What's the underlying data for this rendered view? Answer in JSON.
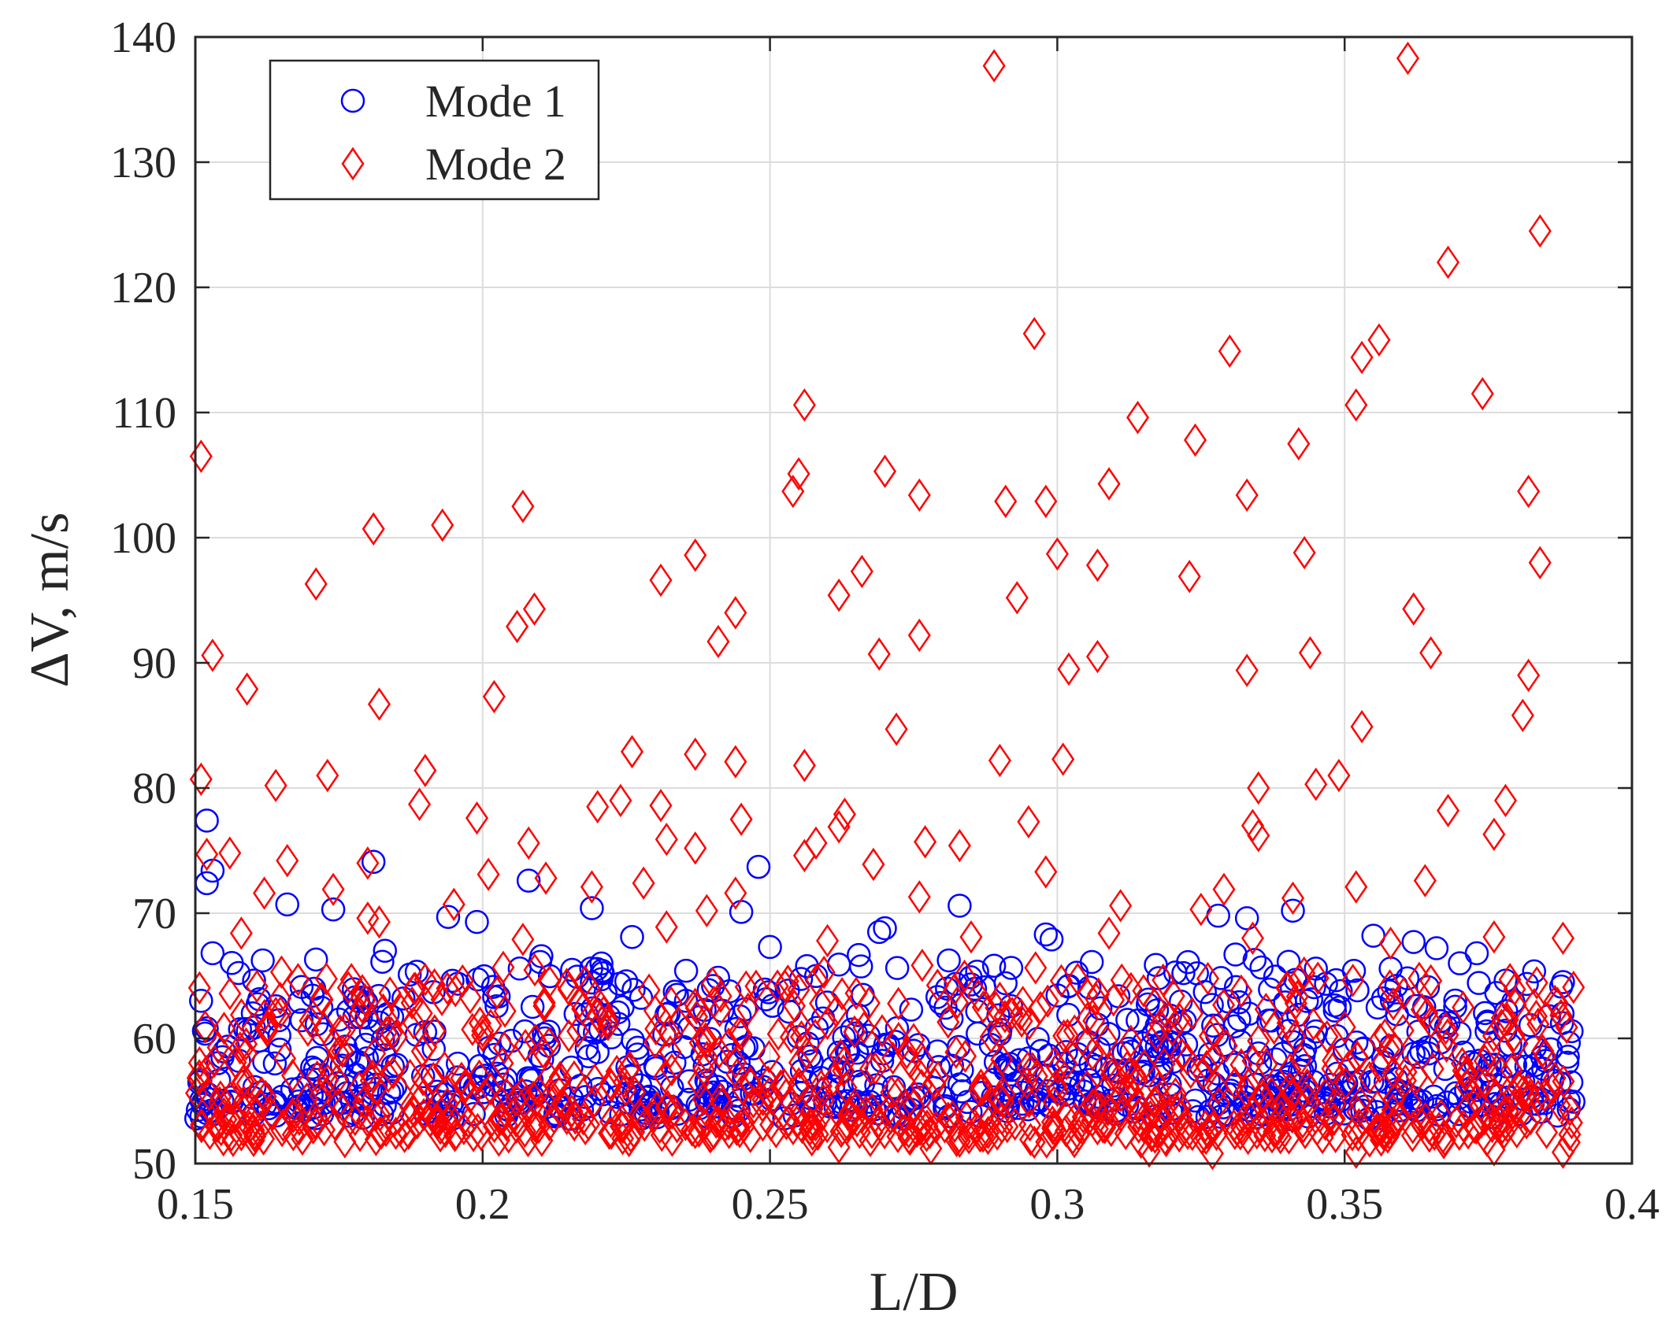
{
  "chart_data": {
    "type": "scatter",
    "title": "",
    "xlabel": "L/D",
    "ylabel": "ΔV, m/s",
    "xlim": [
      0.15,
      0.4
    ],
    "ylim": [
      50,
      140
    ],
    "xticks": [
      0.15,
      0.2,
      0.25,
      0.3,
      0.35,
      0.4
    ],
    "xtick_labels": [
      "0.15",
      "0.2",
      "0.25",
      "0.3",
      "0.35",
      "0.4"
    ],
    "yticks": [
      50,
      60,
      70,
      80,
      90,
      100,
      110,
      120,
      130,
      140
    ],
    "ytick_labels": [
      "50",
      "60",
      "70",
      "80",
      "90",
      "100",
      "110",
      "120",
      "130",
      "140"
    ],
    "grid": true,
    "legend_position": "top-left",
    "series": [
      {
        "name": "Mode 1",
        "marker": "circle",
        "color": "#0000ff",
        "n_points": 900,
        "x_range": [
          0.15,
          0.39
        ],
        "y_range": [
          52.5,
          77.4
        ],
        "points": [
          [
            0.152,
            77.4
          ],
          [
            0.153,
            73.4
          ],
          [
            0.152,
            72.4
          ],
          [
            0.153,
            66.8
          ],
          [
            0.151,
            63.0
          ],
          [
            0.181,
            74.1
          ],
          [
            0.174,
            70.3
          ],
          [
            0.166,
            70.7
          ],
          [
            0.183,
            67.0
          ],
          [
            0.171,
            66.3
          ],
          [
            0.208,
            72.6
          ],
          [
            0.199,
            69.3
          ],
          [
            0.194,
            69.7
          ],
          [
            0.21,
            66.1
          ],
          [
            0.202,
            63.3
          ],
          [
            0.248,
            73.7
          ],
          [
            0.245,
            70.1
          ],
          [
            0.219,
            70.4
          ],
          [
            0.226,
            68.1
          ],
          [
            0.25,
            67.3
          ],
          [
            0.283,
            70.6
          ],
          [
            0.269,
            68.5
          ],
          [
            0.27,
            68.8
          ],
          [
            0.262,
            65.9
          ],
          [
            0.289,
            65.8
          ],
          [
            0.298,
            68.3
          ],
          [
            0.299,
            67.9
          ],
          [
            0.306,
            66.1
          ],
          [
            0.291,
            64.4
          ],
          [
            0.302,
            64.2
          ],
          [
            0.328,
            69.8
          ],
          [
            0.333,
            69.6
          ],
          [
            0.341,
            70.2
          ],
          [
            0.331,
            66.7
          ],
          [
            0.337,
            63.9
          ],
          [
            0.355,
            68.2
          ],
          [
            0.362,
            67.7
          ],
          [
            0.366,
            67.2
          ],
          [
            0.373,
            66.8
          ],
          [
            0.388,
            64.5
          ],
          [
            0.16,
            62.0
          ],
          [
            0.175,
            61.5
          ],
          [
            0.19,
            60.5
          ],
          [
            0.205,
            59.8
          ],
          [
            0.22,
            58.9
          ],
          [
            0.235,
            59.3
          ],
          [
            0.255,
            60.1
          ],
          [
            0.275,
            59.0
          ],
          [
            0.295,
            58.4
          ],
          [
            0.315,
            59.6
          ],
          [
            0.335,
            58.8
          ],
          [
            0.35,
            59.1
          ],
          [
            0.37,
            60.4
          ],
          [
            0.385,
            58.2
          ],
          [
            0.389,
            55.0
          ]
        ]
      },
      {
        "name": "Mode 2",
        "marker": "diamond",
        "color": "#ff0000",
        "n_points": 1000,
        "x_range": [
          0.15,
          0.39
        ],
        "y_range": [
          50.6,
          138.3
        ],
        "points": [
          [
            0.361,
            138.3
          ],
          [
            0.289,
            137.7
          ],
          [
            0.384,
            124.5
          ],
          [
            0.368,
            122.0
          ],
          [
            0.296,
            116.3
          ],
          [
            0.356,
            115.8
          ],
          [
            0.33,
            114.9
          ],
          [
            0.353,
            114.4
          ],
          [
            0.374,
            111.5
          ],
          [
            0.256,
            110.6
          ],
          [
            0.352,
            110.6
          ],
          [
            0.314,
            109.6
          ],
          [
            0.324,
            107.8
          ],
          [
            0.342,
            107.5
          ],
          [
            0.151,
            106.5
          ],
          [
            0.27,
            105.3
          ],
          [
            0.255,
            105.1
          ],
          [
            0.309,
            104.3
          ],
          [
            0.254,
            103.7
          ],
          [
            0.382,
            103.7
          ],
          [
            0.276,
            103.4
          ],
          [
            0.333,
            103.4
          ],
          [
            0.291,
            102.9
          ],
          [
            0.298,
            102.9
          ],
          [
            0.207,
            102.5
          ],
          [
            0.181,
            100.7
          ],
          [
            0.193,
            101.0
          ],
          [
            0.3,
            98.7
          ],
          [
            0.237,
            98.6
          ],
          [
            0.343,
            98.8
          ],
          [
            0.384,
            98.0
          ],
          [
            0.307,
            97.8
          ],
          [
            0.266,
            97.3
          ],
          [
            0.323,
            96.9
          ],
          [
            0.231,
            96.6
          ],
          [
            0.171,
            96.3
          ],
          [
            0.262,
            95.4
          ],
          [
            0.293,
            95.2
          ],
          [
            0.362,
            94.3
          ],
          [
            0.209,
            94.3
          ],
          [
            0.244,
            94.0
          ],
          [
            0.206,
            92.9
          ],
          [
            0.276,
            92.2
          ],
          [
            0.241,
            91.7
          ],
          [
            0.153,
            90.6
          ],
          [
            0.269,
            90.7
          ],
          [
            0.344,
            90.8
          ],
          [
            0.365,
            90.8
          ],
          [
            0.307,
            90.5
          ],
          [
            0.302,
            89.5
          ],
          [
            0.333,
            89.4
          ],
          [
            0.382,
            89.0
          ],
          [
            0.159,
            87.9
          ],
          [
            0.202,
            87.3
          ],
          [
            0.182,
            86.7
          ],
          [
            0.381,
            85.8
          ],
          [
            0.353,
            84.9
          ],
          [
            0.272,
            84.7
          ],
          [
            0.226,
            82.9
          ],
          [
            0.237,
            82.7
          ],
          [
            0.29,
            82.2
          ],
          [
            0.301,
            82.3
          ],
          [
            0.244,
            82.1
          ],
          [
            0.256,
            81.8
          ],
          [
            0.19,
            81.4
          ],
          [
            0.151,
            80.7
          ],
          [
            0.173,
            81.0
          ],
          [
            0.349,
            81.0
          ],
          [
            0.164,
            80.2
          ],
          [
            0.345,
            80.3
          ],
          [
            0.335,
            80.0
          ],
          [
            0.378,
            79.0
          ],
          [
            0.224,
            79.0
          ],
          [
            0.231,
            78.6
          ],
          [
            0.189,
            78.7
          ],
          [
            0.22,
            78.5
          ],
          [
            0.368,
            78.2
          ],
          [
            0.263,
            77.9
          ],
          [
            0.199,
            77.6
          ],
          [
            0.245,
            77.5
          ],
          [
            0.295,
            77.3
          ],
          [
            0.334,
            77.0
          ],
          [
            0.262,
            76.9
          ],
          [
            0.376,
            76.3
          ],
          [
            0.335,
            76.2
          ],
          [
            0.232,
            75.9
          ],
          [
            0.258,
            75.6
          ],
          [
            0.277,
            75.7
          ],
          [
            0.283,
            75.4
          ],
          [
            0.208,
            75.6
          ],
          [
            0.237,
            75.2
          ],
          [
            0.156,
            74.8
          ],
          [
            0.152,
            74.7
          ],
          [
            0.256,
            74.6
          ],
          [
            0.166,
            74.2
          ],
          [
            0.18,
            74.0
          ],
          [
            0.268,
            73.9
          ],
          [
            0.298,
            73.3
          ],
          [
            0.201,
            73.1
          ],
          [
            0.211,
            72.8
          ],
          [
            0.228,
            72.4
          ],
          [
            0.364,
            72.6
          ],
          [
            0.162,
            71.6
          ],
          [
            0.174,
            71.9
          ],
          [
            0.219,
            72.1
          ],
          [
            0.352,
            72.1
          ],
          [
            0.244,
            71.6
          ],
          [
            0.329,
            71.9
          ],
          [
            0.341,
            71.2
          ],
          [
            0.276,
            71.3
          ],
          [
            0.311,
            70.6
          ],
          [
            0.325,
            70.3
          ],
          [
            0.18,
            69.6
          ],
          [
            0.195,
            70.7
          ],
          [
            0.239,
            70.2
          ],
          [
            0.158,
            68.4
          ],
          [
            0.182,
            69.3
          ],
          [
            0.207,
            67.9
          ],
          [
            0.232,
            68.9
          ],
          [
            0.26,
            67.8
          ],
          [
            0.285,
            68.1
          ],
          [
            0.309,
            68.4
          ],
          [
            0.334,
            68.0
          ],
          [
            0.358,
            67.6
          ],
          [
            0.376,
            68.1
          ],
          [
            0.388,
            68.0
          ],
          [
            0.165,
            65.3
          ],
          [
            0.19,
            64.7
          ],
          [
            0.215,
            63.9
          ],
          [
            0.24,
            64.4
          ],
          [
            0.265,
            63.6
          ],
          [
            0.29,
            63.2
          ],
          [
            0.315,
            63.8
          ],
          [
            0.34,
            64.1
          ],
          [
            0.365,
            64.6
          ],
          [
            0.383,
            62.7
          ],
          [
            0.155,
            60.8
          ],
          [
            0.17,
            61.4
          ],
          [
            0.185,
            60.1
          ],
          [
            0.2,
            60.6
          ],
          [
            0.215,
            60.2
          ],
          [
            0.23,
            59.7
          ],
          [
            0.245,
            60.3
          ],
          [
            0.26,
            61.2
          ],
          [
            0.275,
            59.9
          ],
          [
            0.29,
            60.4
          ],
          [
            0.305,
            59.5
          ],
          [
            0.32,
            60.7
          ],
          [
            0.335,
            59.8
          ],
          [
            0.35,
            60.9
          ],
          [
            0.365,
            61.3
          ],
          [
            0.38,
            59.6
          ],
          [
            0.262,
            51.3
          ],
          [
            0.296,
            51.7
          ],
          [
            0.327,
            50.8
          ],
          [
            0.352,
            50.9
          ],
          [
            0.376,
            51.1
          ],
          [
            0.388,
            50.9
          ],
          [
            0.316,
            51.0
          ],
          [
            0.278,
            51.2
          ]
        ]
      }
    ]
  }
}
